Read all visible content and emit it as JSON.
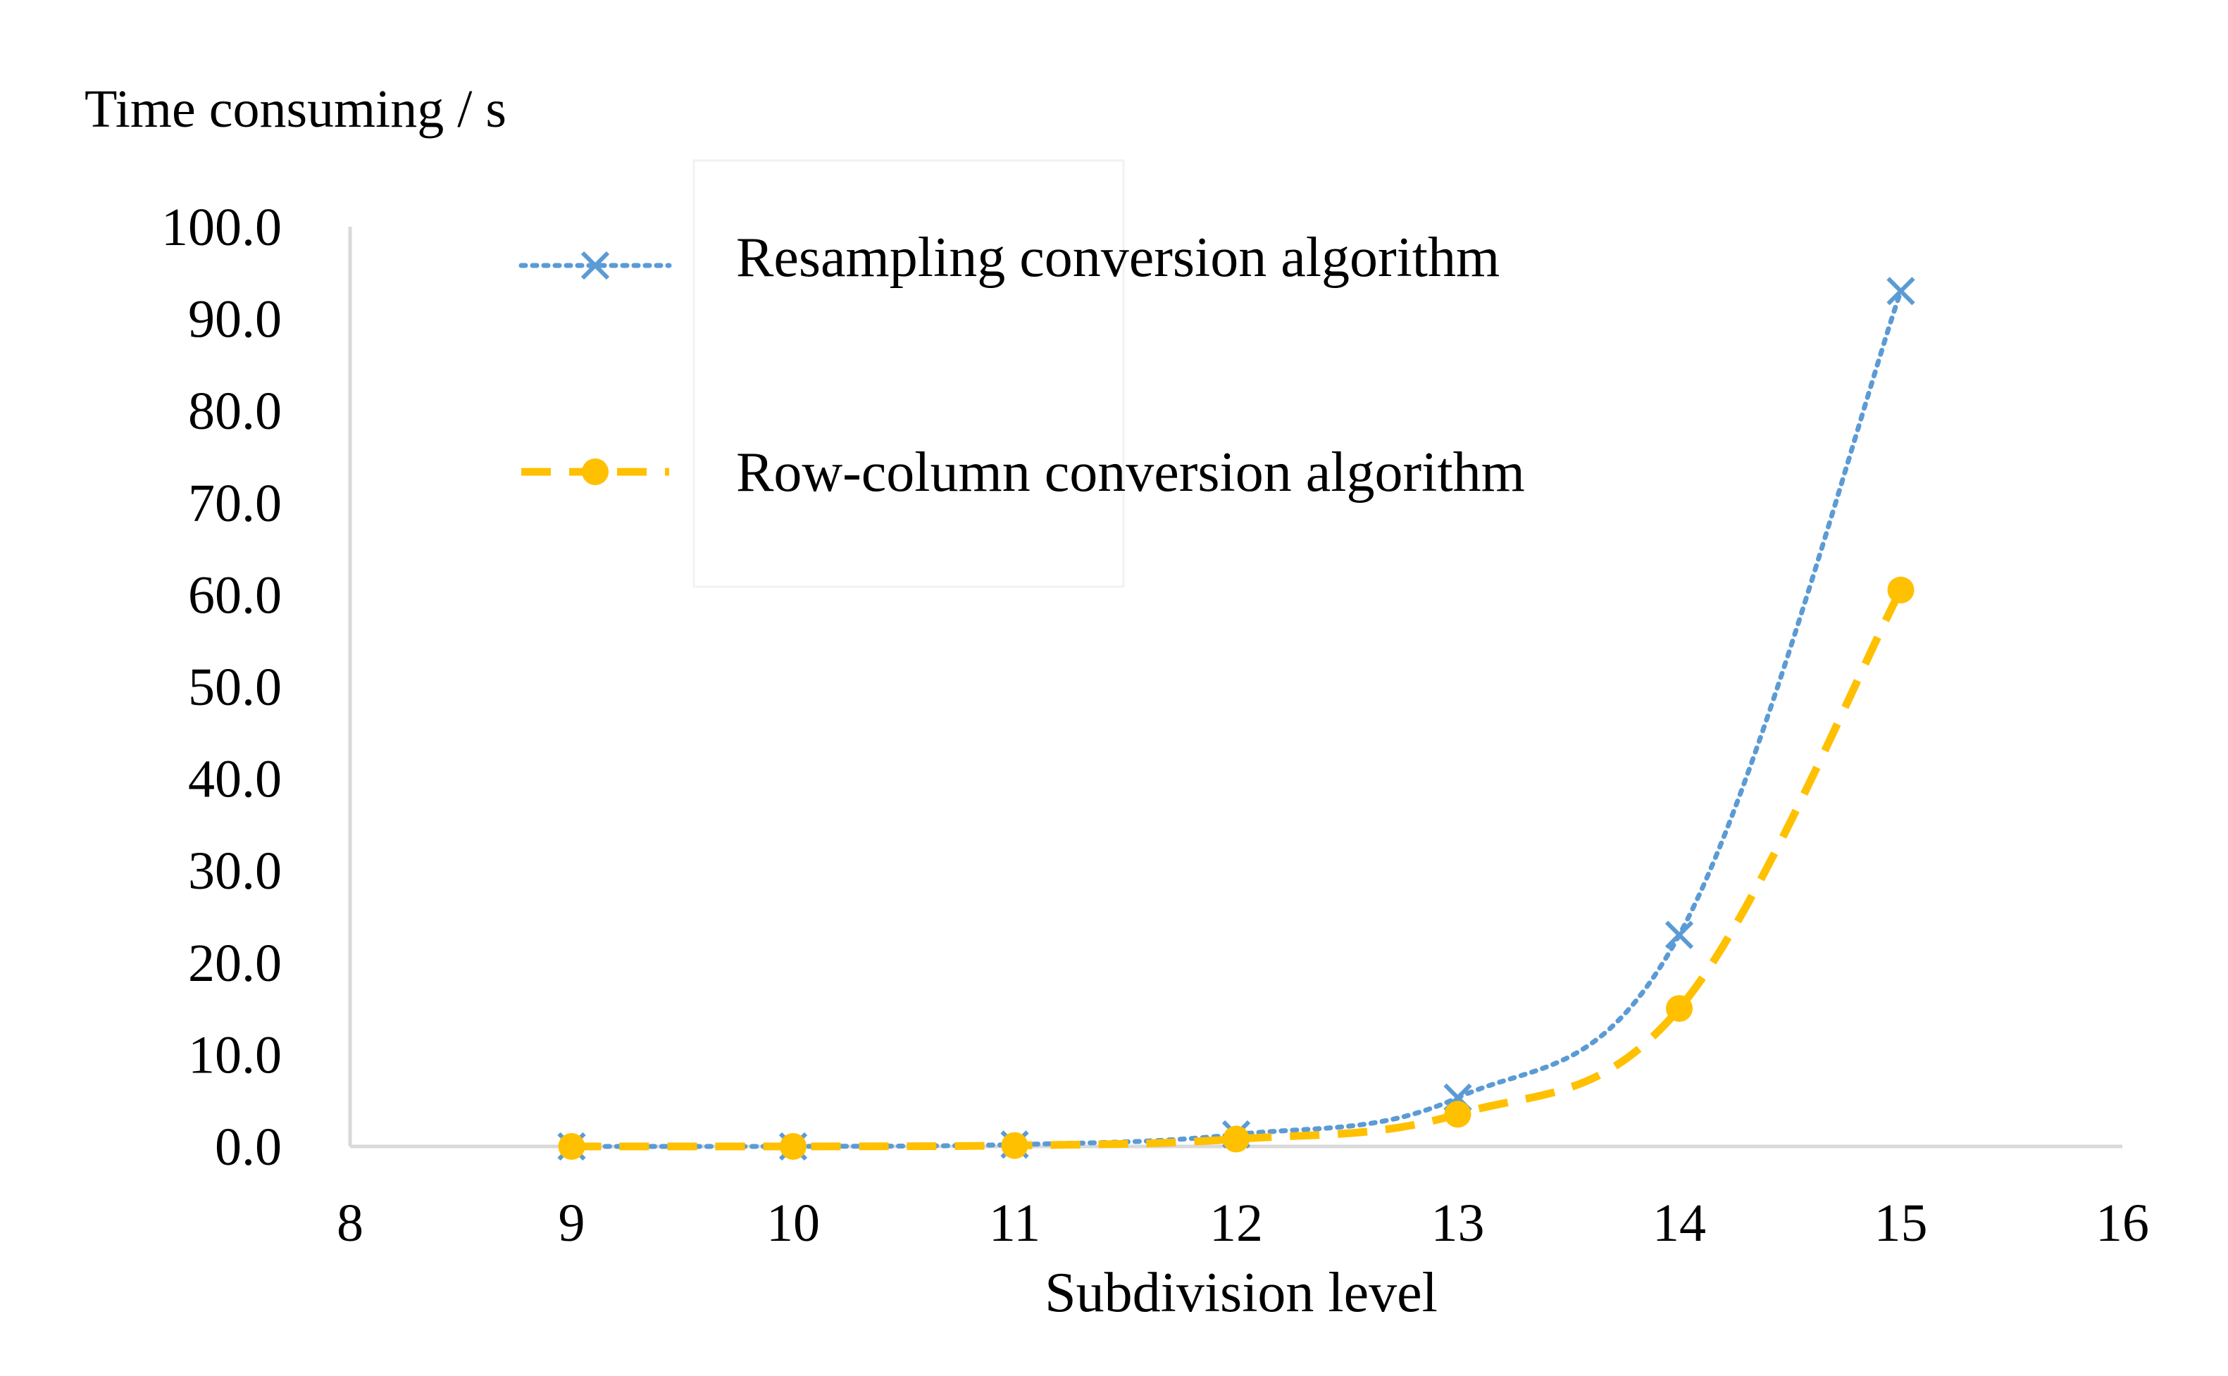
{
  "chart_data": {
    "type": "line",
    "title": "",
    "ylabel": "Time consuming / s",
    "xlabel": "Subdivision level",
    "xlim": [
      8,
      16
    ],
    "ylim": [
      0,
      100
    ],
    "xticks": [
      "8",
      "9",
      "10",
      "11",
      "12",
      "13",
      "14",
      "15",
      "16"
    ],
    "yticks": [
      "0.0",
      "10.0",
      "20.0",
      "30.0",
      "40.0",
      "50.0",
      "60.0",
      "70.0",
      "80.0",
      "90.0",
      "100.0"
    ],
    "x": [
      9,
      10,
      11,
      12,
      13,
      14,
      15
    ],
    "grid": false,
    "legend_position": "top-center",
    "series": [
      {
        "name": "Resampling conversion algorithm",
        "color": "#5B9BD5",
        "line_style": "dotted",
        "marker": "x",
        "values": [
          0.0,
          0.0,
          0.2,
          1.3,
          5.3,
          23.0,
          93.0
        ]
      },
      {
        "name": "Row-column conversion algorithm",
        "color": "#FFC000",
        "line_style": "dashed",
        "marker": "circle",
        "values": [
          0.0,
          0.0,
          0.1,
          0.8,
          3.5,
          15.0,
          60.5
        ]
      }
    ]
  }
}
